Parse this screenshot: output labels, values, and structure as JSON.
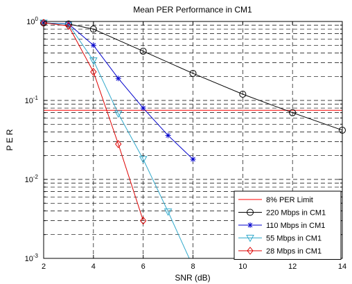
{
  "chart_data": {
    "type": "line",
    "title": "Mean PER Performance in CM1",
    "xlabel": "SNR (dB)",
    "ylabel": "P E R",
    "xlim": [
      2,
      14
    ],
    "ylim": [
      0.001,
      1
    ],
    "yscale": "log",
    "grid": true,
    "legend_position": "bottom-right",
    "xticks": [
      2,
      4,
      6,
      8,
      10,
      12,
      14
    ],
    "xtick_labels": [
      "2",
      "4",
      "6",
      "8",
      "10",
      "12",
      "14"
    ],
    "yticks": [
      {
        "base": "10",
        "exp": "-3",
        "value": 0.001
      },
      {
        "base": "10",
        "exp": "-2",
        "value": 0.01
      },
      {
        "base": "10",
        "exp": "-1",
        "value": 0.1
      },
      {
        "base": "10",
        "exp": "0",
        "value": 1
      }
    ],
    "series": [
      {
        "name": "8% PER Limit",
        "color": "#ff0000",
        "marker": "none",
        "x": [
          2,
          14
        ],
        "y": [
          0.075,
          0.075
        ]
      },
      {
        "name": "220 Mbps in CM1",
        "color": "#000000",
        "marker": "circle",
        "x": [
          2,
          3,
          4,
          6,
          8,
          10,
          12,
          14
        ],
        "y": [
          0.96,
          0.93,
          0.8,
          0.42,
          0.22,
          0.12,
          0.07,
          0.042
        ]
      },
      {
        "name": "110 Mbps in CM1",
        "color": "#0000cc",
        "marker": "star",
        "x": [
          2,
          3,
          4,
          5,
          6,
          7,
          8
        ],
        "y": [
          0.96,
          0.93,
          0.5,
          0.19,
          0.08,
          0.036,
          0.018
        ]
      },
      {
        "name": "55 Mbps in CM1",
        "color": "#33aacc",
        "marker": "triangle-down",
        "x": [
          2,
          3,
          4,
          5,
          6,
          7,
          7.85
        ],
        "y": [
          0.96,
          0.92,
          0.32,
          0.068,
          0.018,
          0.0039,
          0.001
        ]
      },
      {
        "name": "28 Mbps in CM1",
        "color": "#dd0000",
        "marker": "diamond",
        "x": [
          2,
          3,
          4,
          5,
          6
        ],
        "y": [
          0.96,
          0.88,
          0.23,
          0.028,
          0.003
        ]
      }
    ]
  }
}
